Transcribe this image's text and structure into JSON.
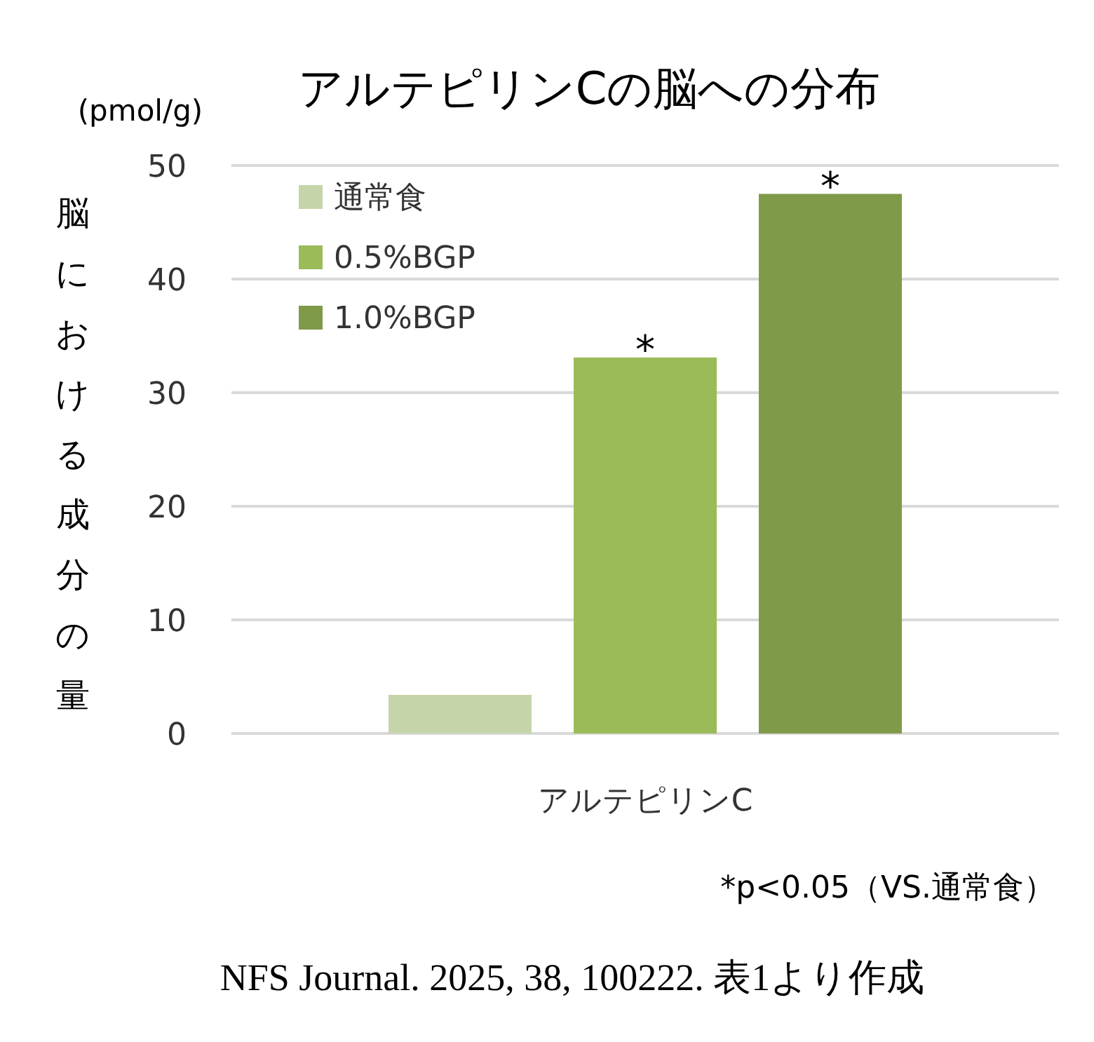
{
  "chart_data": {
    "type": "bar",
    "title": "アルテピリンCの脳への分布",
    "ylabel": "脳における成分の量",
    "categories": [
      "アルテピリンC"
    ],
    "series": [
      {
        "name": "通常食",
        "color": "#c5d5a9",
        "values": [
          3.4
        ]
      },
      {
        "name": "0.5%BGP",
        "color": "#9bbb59",
        "values": [
          33.1
        ]
      },
      {
        "name": "1.0%BGP",
        "color": "#7f9a48",
        "values": [
          47.5
        ]
      }
    ],
    "ylim": [
      0,
      50
    ],
    "yticks": [
      0,
      10,
      20,
      30,
      40,
      50
    ],
    "grid": "y",
    "legend": "top left",
    "annotations": [
      "*",
      "*",
      "(pmol/g)",
      "*p<0.05（VS.通常食）",
      "NFS Journal. 2025, 38, 100222. 表1より作成"
    ]
  }
}
